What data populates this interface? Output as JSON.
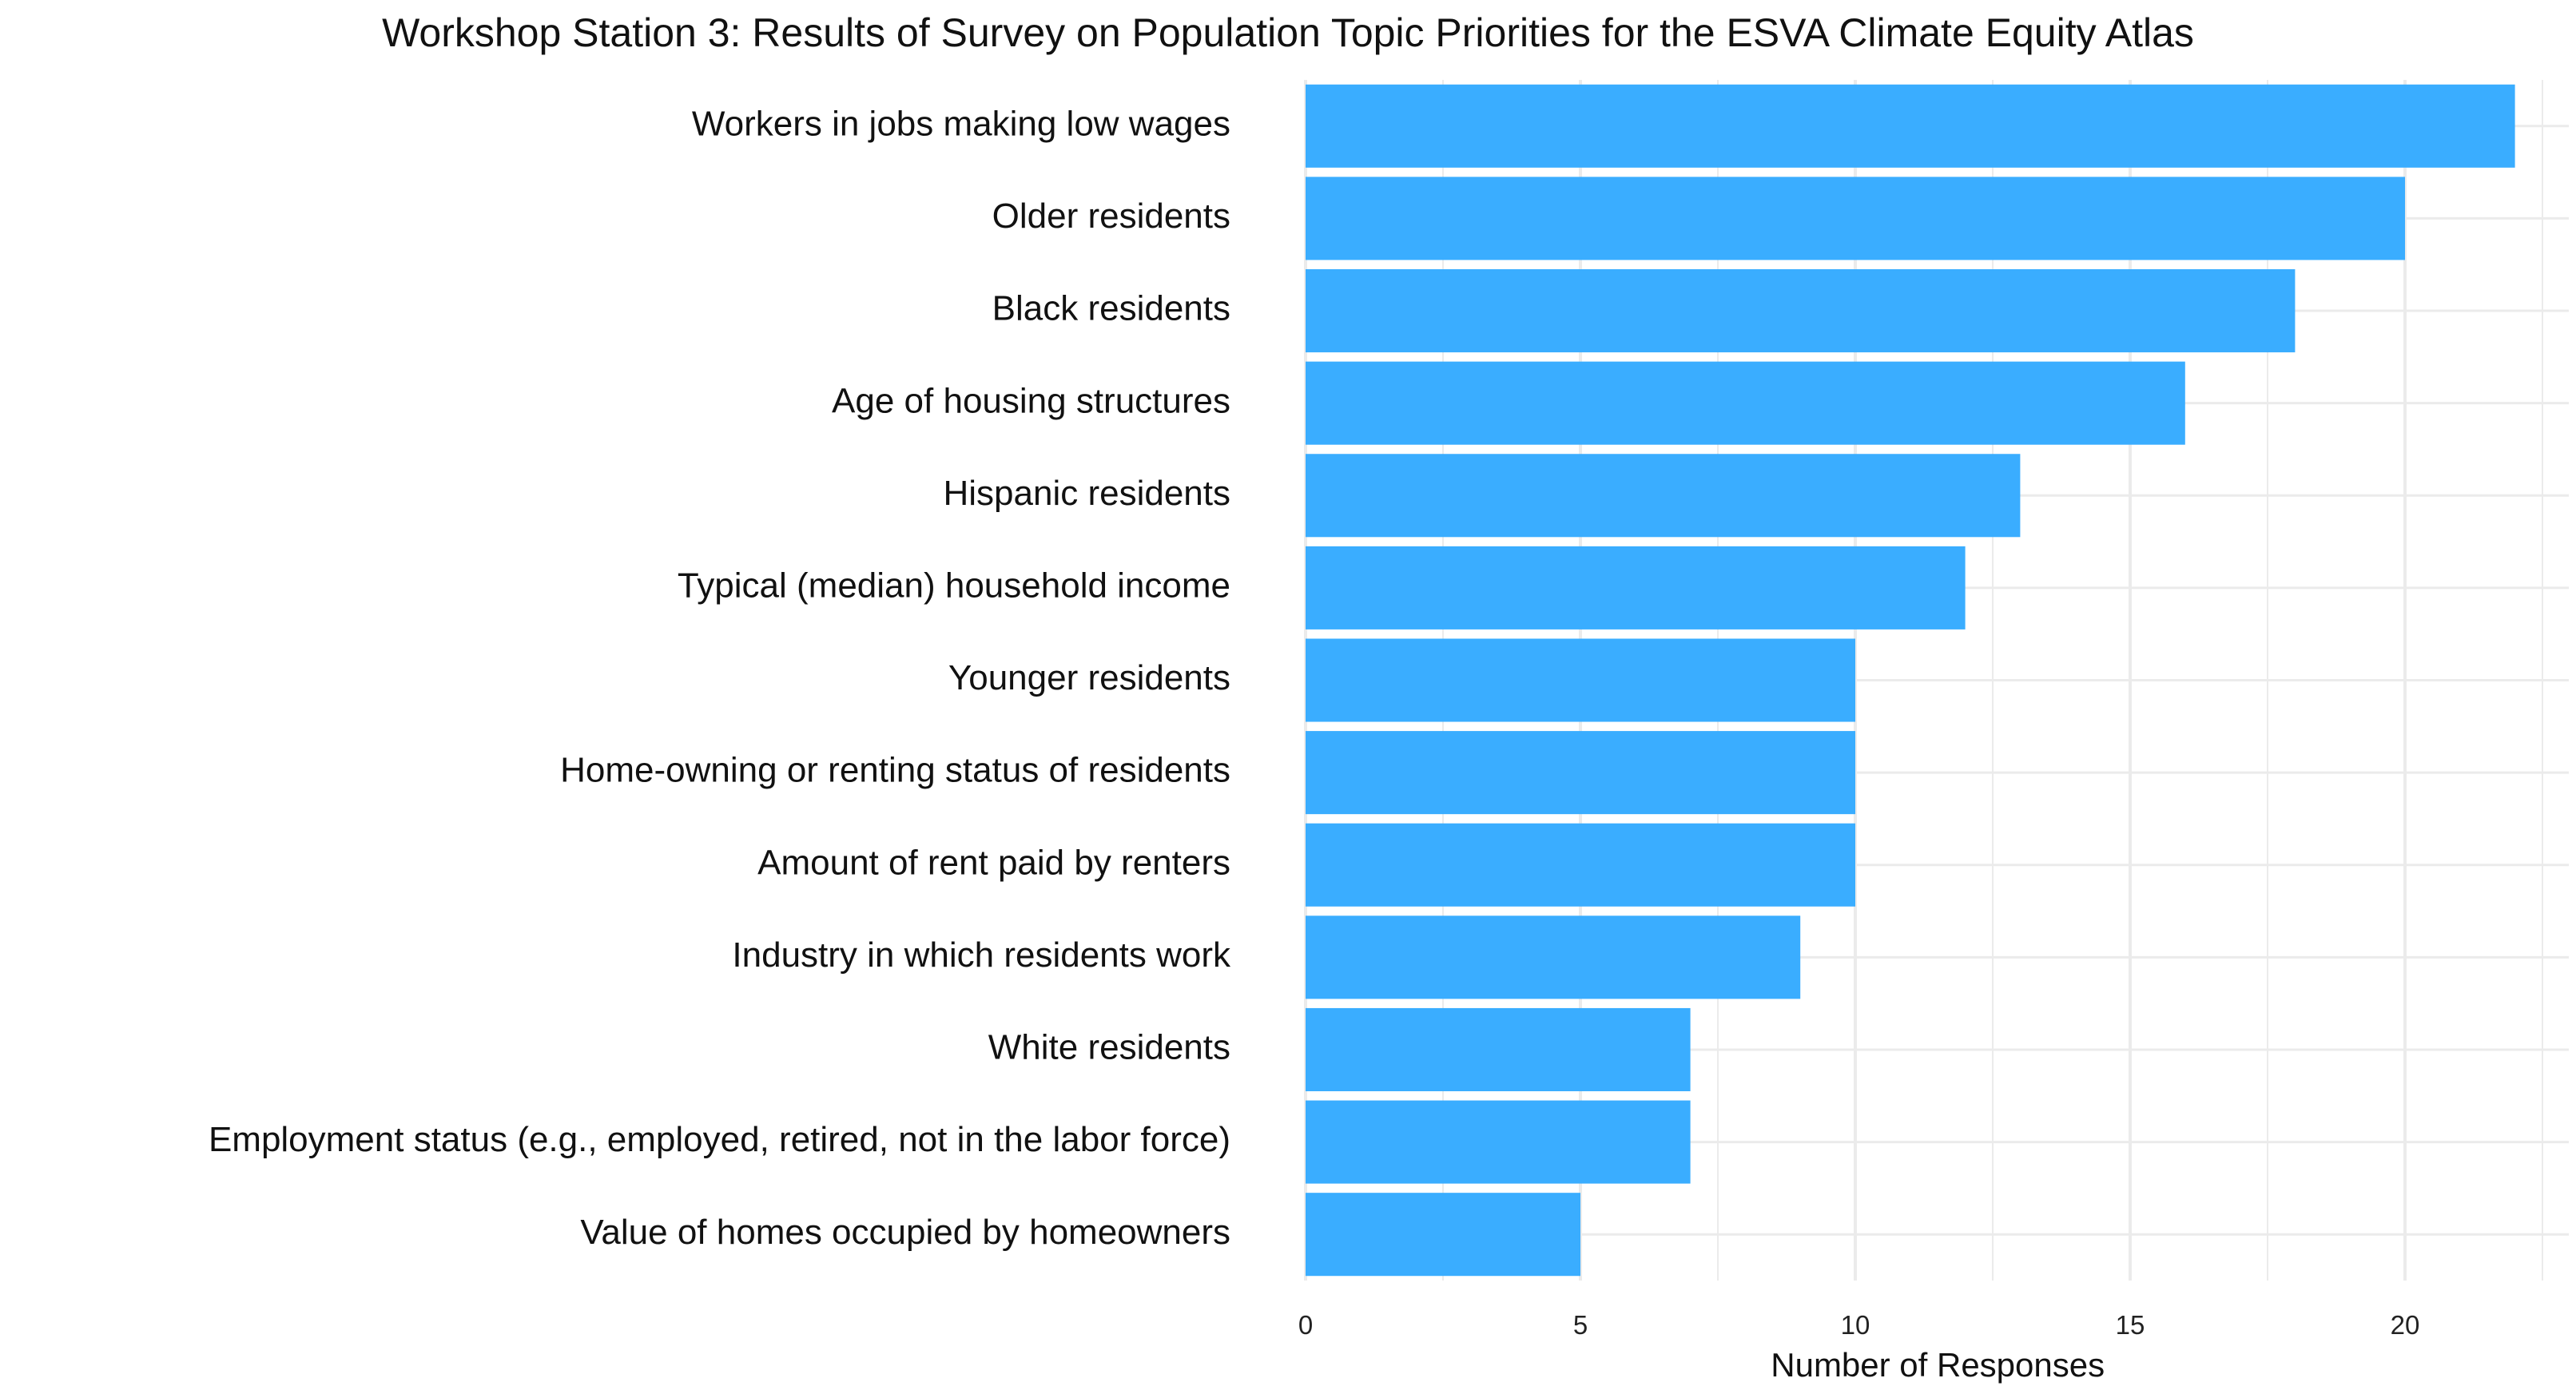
{
  "chart_data": {
    "type": "bar",
    "orientation": "horizontal",
    "title": "Workshop Station 3: Results of Survey on Population Topic Priorities for the ESVA Climate Equity Atlas",
    "xlabel": "Number of Responses",
    "ylabel": "",
    "categories": [
      "Workers in jobs making low wages",
      "Older residents",
      "Black residents",
      "Age of housing structures",
      "Hispanic residents",
      "Typical (median) household income",
      "Younger residents",
      "Home-owning or renting status of residents",
      "Amount of rent paid by renters",
      "Industry in which residents work",
      "White residents",
      "Employment status (e.g., employed, retired, not in the labor force)",
      "Value of homes occupied by homeowners"
    ],
    "values": [
      22,
      20,
      18,
      16,
      13,
      12,
      10,
      10,
      10,
      9,
      7,
      7,
      5
    ],
    "xticks": [
      0,
      5,
      10,
      15,
      20
    ],
    "xlim": [
      0,
      23
    ],
    "grid": true,
    "legend": "none",
    "bar_color": "#3AADFF",
    "grid_color": "#EBEBEB"
  }
}
